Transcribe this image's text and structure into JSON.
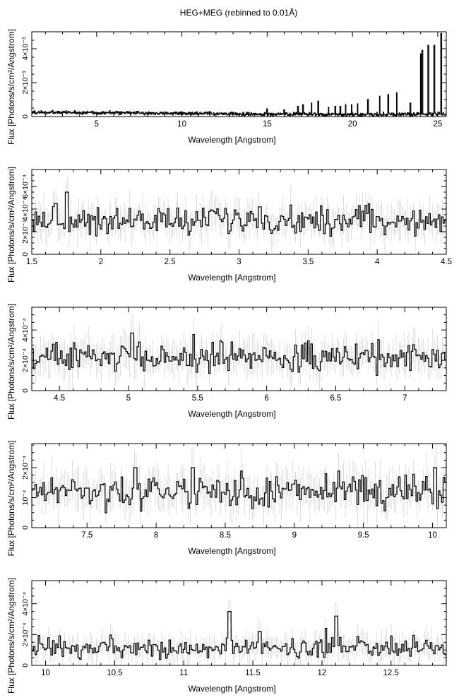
{
  "chart_data": {
    "title": "HEG+MEG (rebinned to 0.01Å)",
    "panels": [
      {
        "type": "line",
        "style": "step-histogram-with-errorbars",
        "xlabel": "Wavelength [Angstrom]",
        "ylabel": "Flux [Photons/s/cm²/Angstrom]",
        "xlim": [
          1.2,
          25.5
        ],
        "ylim": [
          0,
          0.005
        ],
        "x_ticks": [
          5,
          10,
          15,
          20,
          25
        ],
        "x_tick_labels": [
          "5",
          "10",
          "15",
          "20",
          "25"
        ],
        "y_ticks": [
          0,
          0.002,
          0.004
        ],
        "y_tick_labels": [
          "0",
          "2×10⁻³",
          "4×10⁻³"
        ],
        "baseline": 0.00018,
        "noise": 8e-05,
        "lines": [
          {
            "x": 15.0,
            "y": 0.00045
          },
          {
            "x": 16.0,
            "y": 0.0004
          },
          {
            "x": 16.8,
            "y": 0.0006
          },
          {
            "x": 17.1,
            "y": 0.0007
          },
          {
            "x": 17.6,
            "y": 0.0008
          },
          {
            "x": 18.0,
            "y": 0.0009
          },
          {
            "x": 18.6,
            "y": 0.00055
          },
          {
            "x": 19.0,
            "y": 0.0006
          },
          {
            "x": 19.3,
            "y": 0.0006
          },
          {
            "x": 19.6,
            "y": 0.0007
          },
          {
            "x": 19.95,
            "y": 0.0007
          },
          {
            "x": 20.3,
            "y": 0.00075
          },
          {
            "x": 20.9,
            "y": 0.001
          },
          {
            "x": 21.6,
            "y": 0.0012
          },
          {
            "x": 22.1,
            "y": 0.0013
          },
          {
            "x": 22.6,
            "y": 0.0014
          },
          {
            "x": 23.4,
            "y": 0.0008
          },
          {
            "x": 24.0,
            "y": 0.0037
          },
          {
            "x": 24.1,
            "y": 0.0039
          },
          {
            "x": 24.45,
            "y": 0.0042
          },
          {
            "x": 24.8,
            "y": 0.0042
          },
          {
            "x": 25.2,
            "y": 0.0049
          }
        ]
      },
      {
        "type": "line",
        "style": "step-histogram-with-errorbars",
        "xlabel": "Wavelength [Angstrom]",
        "ylabel": "Flux [Photons/s/cm²/Angstrom]",
        "xlim": [
          1.5,
          4.5
        ],
        "ylim": [
          0,
          0.00075
        ],
        "x_ticks": [
          1.5,
          2,
          2.5,
          3,
          3.5,
          4,
          4.5
        ],
        "x_tick_labels": [
          "1.5",
          "2",
          "2.5",
          "3",
          "3.5",
          "4",
          "4.5"
        ],
        "y_ticks": [
          0,
          0.0002,
          0.0004,
          0.0006
        ],
        "y_tick_labels": [
          "0",
          "2×10⁻⁴",
          "4×10⁻⁴",
          "6×10⁻⁴"
        ],
        "baseline": 0.0003,
        "noise": 9e-05,
        "lines": [
          {
            "x": 1.75,
            "y": 0.00055
          },
          {
            "x": 1.67,
            "y": 0.00045
          },
          {
            "x": 3.15,
            "y": 0.00042
          }
        ]
      },
      {
        "type": "line",
        "style": "step-histogram-with-errorbars",
        "xlabel": "Wavelength [Angstrom]",
        "ylabel": "Flux [Photons/s/cm²/Angstrom]",
        "xlim": [
          4.3,
          7.3
        ],
        "ylim": [
          0,
          0.00055
        ],
        "x_ticks": [
          4.5,
          5,
          5.5,
          6,
          6.5,
          7
        ],
        "x_tick_labels": [
          "4.5",
          "5",
          "5.5",
          "6",
          "6.5",
          "7"
        ],
        "y_ticks": [
          0,
          0.0002,
          0.0004
        ],
        "y_tick_labels": [
          "0",
          "2×10⁻⁴",
          "4×10⁻⁴"
        ],
        "baseline": 0.00022,
        "noise": 7e-05,
        "lines": [
          {
            "x": 5.03,
            "y": 0.00038
          },
          {
            "x": 5.47,
            "y": 0.00037
          },
          {
            "x": 5.68,
            "y": 0.00032
          }
        ]
      },
      {
        "type": "line",
        "style": "step-histogram-with-errorbars",
        "xlabel": "Wavelength [Angstrom]",
        "ylabel": "Flux [Photons/s/cm²/Angstrom]",
        "xlim": [
          7.1,
          10.1
        ],
        "ylim": [
          0,
          0.00028
        ],
        "x_ticks": [
          7.5,
          8,
          8.5,
          9,
          9.5,
          10
        ],
        "x_tick_labels": [
          "7.5",
          "8",
          "8.5",
          "9",
          "9.5",
          "10"
        ],
        "y_ticks": [
          0,
          0.0001,
          0.0002
        ],
        "y_tick_labels": [
          "0",
          "10⁻⁴",
          "2×10⁻⁴"
        ],
        "baseline": 0.00012,
        "noise": 4e-05,
        "lines": [
          {
            "x": 7.85,
            "y": 0.0002
          },
          {
            "x": 8.27,
            "y": 0.0002
          },
          {
            "x": 10.02,
            "y": 0.0002
          }
        ]
      },
      {
        "type": "line",
        "style": "step-histogram-with-errorbars",
        "xlabel": "Wavelength [Angstrom]",
        "ylabel": "Flux [Photons/s/cm²/Angstrom]",
        "xlim": [
          9.9,
          12.9
        ],
        "ylim": [
          0,
          0.00055
        ],
        "x_ticks": [
          10,
          10.5,
          11,
          11.5,
          12,
          12.5
        ],
        "x_tick_labels": [
          "10",
          "10.5",
          "11",
          "11.5",
          "12",
          "12.5"
        ],
        "y_ticks": [
          0,
          0.0002,
          0.0004
        ],
        "y_tick_labels": [
          "0",
          "2×10⁻⁴",
          "4×10⁻⁴"
        ],
        "baseline": 0.00011,
        "noise": 5e-05,
        "lines": [
          {
            "x": 11.33,
            "y": 0.00035
          },
          {
            "x": 12.1,
            "y": 0.00032
          },
          {
            "x": 12.03,
            "y": 0.00024
          },
          {
            "x": 11.55,
            "y": 0.00022
          }
        ]
      }
    ]
  }
}
